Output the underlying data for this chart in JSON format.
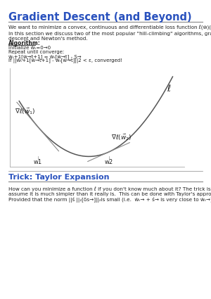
{
  "title": "Gradient Descent (and Beyond)",
  "title_color": "#2a52be",
  "title_fontsize": 10.5,
  "separator_color": "#888888",
  "xlabel_w1": "w1",
  "xlabel_w2": "w2",
  "curve_label": "ℓ",
  "section2_title": "Trick: Taylor Expansion",
  "section2_color": "#2a52be",
  "bg_color": "#ffffff",
  "text_color": "#222222",
  "plot_bg": "#ffffff",
  "curve_color": "#555555",
  "tangent_color": "#888888"
}
